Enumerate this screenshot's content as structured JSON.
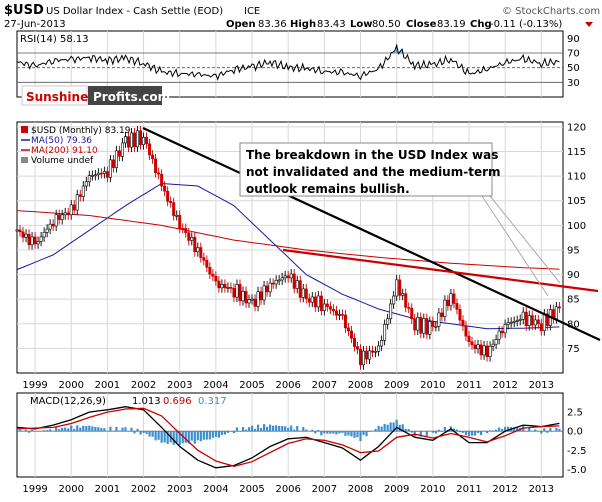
{
  "header": {
    "symbol": "$USD",
    "name": "US Dollar Index - Cash Settle (EOD)",
    "exchange": "ICE",
    "date": "27-Jun-2013",
    "open_label": "Open",
    "open": "83.36",
    "high_label": "High",
    "high": "83.43",
    "low_label": "Low",
    "low": "80.50",
    "close_label": "Close",
    "close": "83.19",
    "chg_label": "Chg",
    "chg": "-0.11 (-0.13%)",
    "source": "© StockCharts.com"
  },
  "colors": {
    "price_bar": "#cc0000",
    "ma50": "#1a1aa0",
    "ma200": "#cc0000",
    "trend_black": "#000000",
    "trend_red": "#cc0000",
    "macd_line": "#000000",
    "signal_line": "#cc0000",
    "histogram": "#3b8fd1",
    "rsi_line": "#000000",
    "rsi_fill_over": "#5a9ad6",
    "rsi_fill_under": "#c79a9a",
    "annotation_line": "#aaaaaa",
    "grid": "#d8d8d8"
  },
  "watermark": {
    "brand1": "Sunshine",
    "brand2": "Profits.com"
  },
  "annotation": {
    "text_lines": [
      "The breakdown in the USD Index was",
      "not invalidated and the medium-term",
      "outlook remains bullish."
    ]
  },
  "chart_data": [
    {
      "type": "line",
      "panel": "RSI",
      "legend": [
        "RSI(14) 58.13"
      ],
      "yticks": [
        30,
        50,
        70,
        90
      ],
      "ylim": [
        10,
        100
      ],
      "x": [
        1998.5,
        1999.0,
        1999.5,
        2000.0,
        2000.5,
        2001.0,
        2001.5,
        2002.0,
        2002.5,
        2003.0,
        2003.5,
        2004.0,
        2004.5,
        2005.0,
        2005.5,
        2006.0,
        2006.5,
        2007.0,
        2007.5,
        2008.0,
        2008.5,
        2009.0,
        2009.5,
        2010.0,
        2010.5,
        2011.0,
        2011.5,
        2012.0,
        2012.5,
        2013.0,
        2013.5
      ],
      "y": [
        58,
        52,
        60,
        61,
        64,
        60,
        63,
        56,
        44,
        42,
        41,
        38,
        48,
        51,
        58,
        50,
        49,
        45,
        43,
        39,
        48,
        77,
        53,
        54,
        62,
        41,
        48,
        57,
        62,
        56,
        58
      ]
    },
    {
      "type": "bar",
      "panel": "price",
      "title": "$USD US Dollar Index - Cash Settle (EOD) ICE",
      "legend": [
        "$USD (Monthly) 83.19",
        "MA(50) 79.36",
        "MA(200) 91.10",
        "Volume undef"
      ],
      "ylim": [
        70,
        121
      ],
      "yticks": [
        75,
        80,
        85,
        90,
        95,
        100,
        105,
        110,
        115,
        120
      ],
      "xticks": [
        "1999",
        "2000",
        "2001",
        "2002",
        "2003",
        "2004",
        "2005",
        "2006",
        "2007",
        "2008",
        "2009",
        "2010",
        "2011",
        "2012",
        "2013"
      ],
      "grid": true,
      "series": [
        {
          "name": "$USD (Monthly) 83.19",
          "x": [
            1998.5,
            1999.0,
            1999.5,
            2000.0,
            2000.5,
            2001.0,
            2001.5,
            2002.0,
            2002.5,
            2003.0,
            2003.5,
            2004.0,
            2004.5,
            2005.0,
            2005.5,
            2006.0,
            2006.5,
            2007.0,
            2007.5,
            2008.0,
            2008.5,
            2009.0,
            2009.5,
            2010.0,
            2010.5,
            2011.0,
            2011.5,
            2012.0,
            2012.5,
            2013.0,
            2013.5
          ],
          "y": [
            99,
            96,
            101,
            103,
            110,
            111,
            117,
            118,
            108,
            100,
            95,
            88,
            87,
            84,
            88,
            90,
            85,
            84,
            81,
            73,
            75,
            88,
            80,
            79,
            86,
            76,
            74,
            80,
            81,
            80,
            83.2
          ]
        },
        {
          "name": "MA(50) 79.36",
          "x": [
            1998.5,
            1999.5,
            2000.5,
            2001.5,
            2002.5,
            2003.5,
            2004.5,
            2005.5,
            2006.5,
            2007.5,
            2008.5,
            2009.5,
            2010.5,
            2011.5,
            2012.5,
            2013.5
          ],
          "y": [
            91,
            94,
            99,
            104,
            108.5,
            108,
            104,
            97,
            90,
            86,
            83,
            81,
            80,
            79,
            79.1,
            79.36
          ]
        },
        {
          "name": "MA(200) 91.10",
          "x": [
            1998.5,
            2000.5,
            2002.5,
            2004.5,
            2006.5,
            2008.5,
            2010.5,
            2012.5,
            2013.5
          ],
          "y": [
            103,
            102,
            100,
            97,
            95,
            93.5,
            92.3,
            91.4,
            91.1
          ]
        }
      ]
    },
    {
      "type": "line",
      "panel": "MACD",
      "legend": [
        "MACD(12,26,9)",
        "1.013",
        "0.696",
        "0.317"
      ],
      "ylim": [
        -6,
        5
      ],
      "yticks": [
        -5.0,
        -2.5,
        0.0,
        2.5
      ],
      "xticks": [
        "1999",
        "2000",
        "2001",
        "2002",
        "2003",
        "2004",
        "2005",
        "2006",
        "2007",
        "2008",
        "2009",
        "2010",
        "2011",
        "2012",
        "2013"
      ],
      "series": [
        {
          "name": "MACD(12,26,9)",
          "x": [
            1998.5,
            1999.0,
            1999.5,
            2000.0,
            2000.5,
            2001.0,
            2001.5,
            2002.0,
            2002.5,
            2003.0,
            2003.5,
            2004.0,
            2004.5,
            2005.0,
            2005.5,
            2006.0,
            2006.5,
            2007.0,
            2007.5,
            2008.0,
            2008.5,
            2009.0,
            2009.5,
            2010.0,
            2010.5,
            2011.0,
            2011.5,
            2012.0,
            2012.5,
            2013.0,
            2013.5
          ],
          "y": [
            0.5,
            0.3,
            0.8,
            1.5,
            2.5,
            2.8,
            3.2,
            2.8,
            0.5,
            -2.0,
            -3.8,
            -4.8,
            -4.5,
            -3.5,
            -2.0,
            -1.0,
            -0.8,
            -1.5,
            -2.2,
            -3.8,
            -2.0,
            0.5,
            -0.8,
            -1.2,
            0.3,
            -1.5,
            -1.5,
            0.0,
            0.8,
            0.6,
            1.013
          ]
        },
        {
          "name": "0.696",
          "x": [
            1998.5,
            1999.0,
            1999.5,
            2000.0,
            2000.5,
            2001.0,
            2001.5,
            2002.0,
            2002.5,
            2003.0,
            2003.5,
            2004.0,
            2004.5,
            2005.0,
            2005.5,
            2006.0,
            2006.5,
            2007.0,
            2007.5,
            2008.0,
            2008.5,
            2009.0,
            2009.5,
            2010.0,
            2010.5,
            2011.0,
            2011.5,
            2012.0,
            2012.5,
            2013.0,
            2013.5
          ],
          "y": [
            0.3,
            0.4,
            0.5,
            1.0,
            1.8,
            2.5,
            2.9,
            3.0,
            2.0,
            -0.3,
            -2.5,
            -3.9,
            -4.6,
            -4.0,
            -2.8,
            -1.6,
            -1.0,
            -1.2,
            -1.8,
            -2.8,
            -2.6,
            -0.8,
            -0.4,
            -0.9,
            -0.3,
            -0.8,
            -1.4,
            -0.6,
            0.4,
            0.6,
            0.696
          ]
        },
        {
          "name": "0.317",
          "x": [
            1998.5,
            1999.0,
            1999.5,
            2000.0,
            2000.5,
            2001.0,
            2001.5,
            2002.0,
            2002.5,
            2003.0,
            2003.5,
            2004.0,
            2004.5,
            2005.0,
            2005.5,
            2006.0,
            2006.5,
            2007.0,
            2007.5,
            2008.0,
            2008.5,
            2009.0,
            2009.5,
            2010.0,
            2010.5,
            2011.0,
            2011.5,
            2012.0,
            2012.5,
            2013.0,
            2013.5
          ],
          "y": [
            0.2,
            -0.1,
            0.3,
            0.5,
            0.7,
            0.3,
            0.3,
            -0.2,
            -1.5,
            -1.7,
            -1.3,
            -0.9,
            0.1,
            0.5,
            0.8,
            0.6,
            0.2,
            -0.3,
            -0.4,
            -1.0,
            0.6,
            1.3,
            -0.4,
            -0.3,
            0.6,
            -0.7,
            -0.1,
            0.6,
            0.4,
            0.0,
            0.317
          ]
        }
      ]
    }
  ]
}
